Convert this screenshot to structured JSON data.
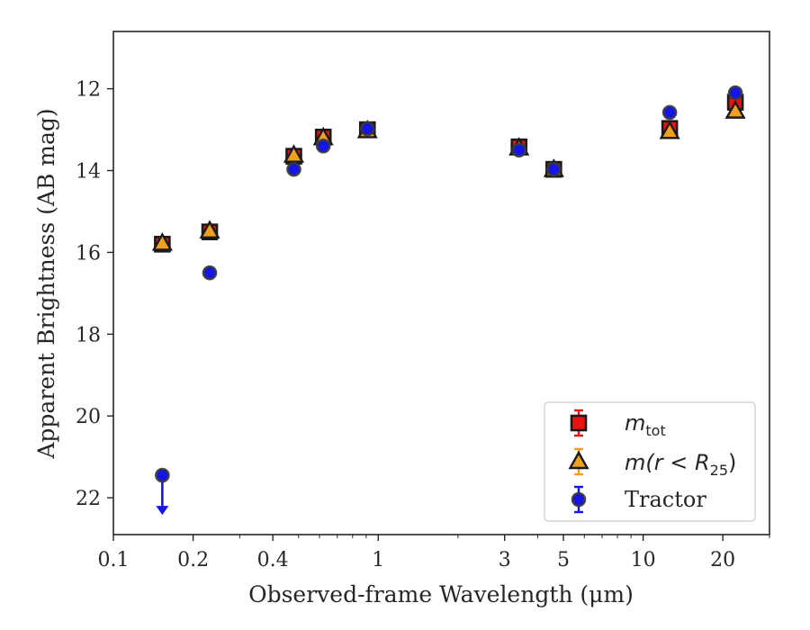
{
  "chart_data": {
    "type": "scatter",
    "title": "",
    "xlabel": "Observed-frame Wavelength (μm)",
    "ylabel": "Apparent Brightness (AB mag)",
    "xscale": "log",
    "xlim": [
      0.1,
      30
    ],
    "ylim": [
      22.9,
      10.6
    ],
    "y_inverted": true,
    "x_ticks": [
      0.1,
      0.2,
      0.4,
      1,
      3,
      5,
      10,
      20
    ],
    "x_tick_labels": [
      "0.1",
      "0.2",
      "0.4",
      "1",
      "3",
      "5",
      "10",
      "20"
    ],
    "y_ticks": [
      12,
      14,
      16,
      18,
      20,
      22
    ],
    "y_tick_labels": [
      "12",
      "14",
      "16",
      "18",
      "20",
      "22"
    ],
    "grid": false,
    "legend_position": "lower-right",
    "series": [
      {
        "name": "m_tot",
        "legend_main": "m",
        "legend_sub": "tot",
        "marker": "square",
        "color": "#ee1111",
        "edge": "#1a1a1a",
        "x": [
          0.153,
          0.231,
          0.48,
          0.62,
          0.91,
          3.4,
          4.6,
          12.6,
          22.3
        ],
        "y": [
          15.8,
          15.5,
          13.65,
          13.18,
          13.0,
          13.42,
          13.97,
          12.97,
          12.33
        ]
      },
      {
        "name": "m(r < R25)",
        "legend_main": "m(r < R",
        "legend_sub": "25",
        "legend_end": ")",
        "marker": "triangle",
        "color": "#f0a020",
        "edge": "#1a1a1a",
        "x": [
          0.153,
          0.231,
          0.48,
          0.62,
          0.91,
          3.4,
          4.6,
          12.6,
          22.3
        ],
        "y": [
          15.78,
          15.48,
          13.63,
          13.2,
          13.03,
          13.45,
          13.98,
          13.05,
          12.55
        ]
      },
      {
        "name": "Tractor",
        "marker": "circle",
        "color": "#1515e8",
        "edge": "#3a3a3a",
        "x": [
          0.153,
          0.231,
          0.48,
          0.62,
          0.91,
          3.4,
          4.6,
          12.6,
          22.3
        ],
        "y": [
          21.45,
          16.5,
          13.97,
          13.4,
          12.98,
          13.5,
          13.97,
          12.58,
          12.1
        ],
        "upper_limit_index": 0
      }
    ]
  }
}
